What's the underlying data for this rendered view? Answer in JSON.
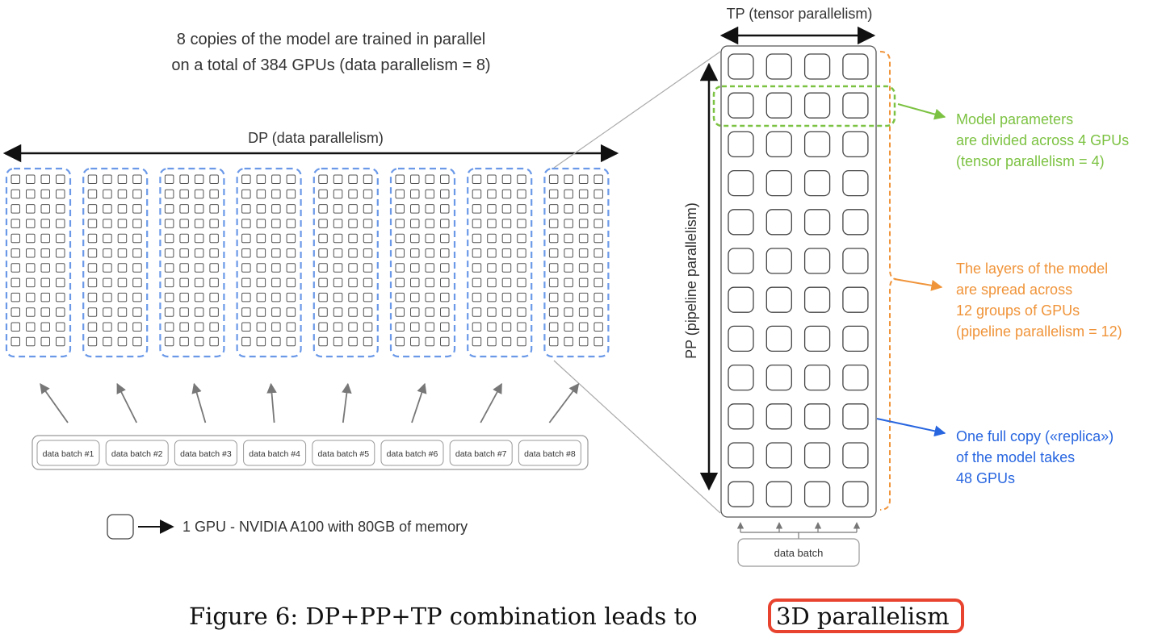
{
  "header": {
    "line1": "8 copies of the model are trained in parallel",
    "line2": "on a total of 384 GPUs (data parallelism = 8)"
  },
  "dp_label": "DP (data parallelism)",
  "tp_label": "TP (tensor parallelism)",
  "pp_label": "PP (pipeline parallelism)",
  "replica_count": 8,
  "mini_grid": {
    "cols": 4,
    "rows": 12
  },
  "big_grid": {
    "cols": 4,
    "rows": 12
  },
  "data_batches": [
    "data batch #1",
    "data batch #2",
    "data batch #3",
    "data batch #4",
    "data batch #5",
    "data batch #6",
    "data batch #7",
    "data batch #8"
  ],
  "replica_data_batch": "data batch",
  "legend": {
    "text": "1 GPU - NVIDIA A100 with 80GB of memory"
  },
  "annotations": {
    "tensor": {
      "lines": [
        "Model parameters",
        "are divided across 4 GPUs",
        "(tensor parallelism = 4)"
      ],
      "color": "#7cc242"
    },
    "pipeline": {
      "lines": [
        "The layers of the model",
        "are spread across",
        "12 groups of GPUs",
        "(pipeline parallelism = 12)"
      ],
      "color": "#f0943a"
    },
    "replica": {
      "lines": [
        "One full copy («replica»)",
        "of the model takes",
        "48 GPUs"
      ],
      "color": "#2866e0"
    }
  },
  "colors": {
    "dp_dash": "#6b99e8",
    "highlight_box": "#e8432e"
  },
  "caption": {
    "prefix": "Figure 6: DP+PP+TP combination leads to",
    "highlight": "3D parallelism"
  }
}
